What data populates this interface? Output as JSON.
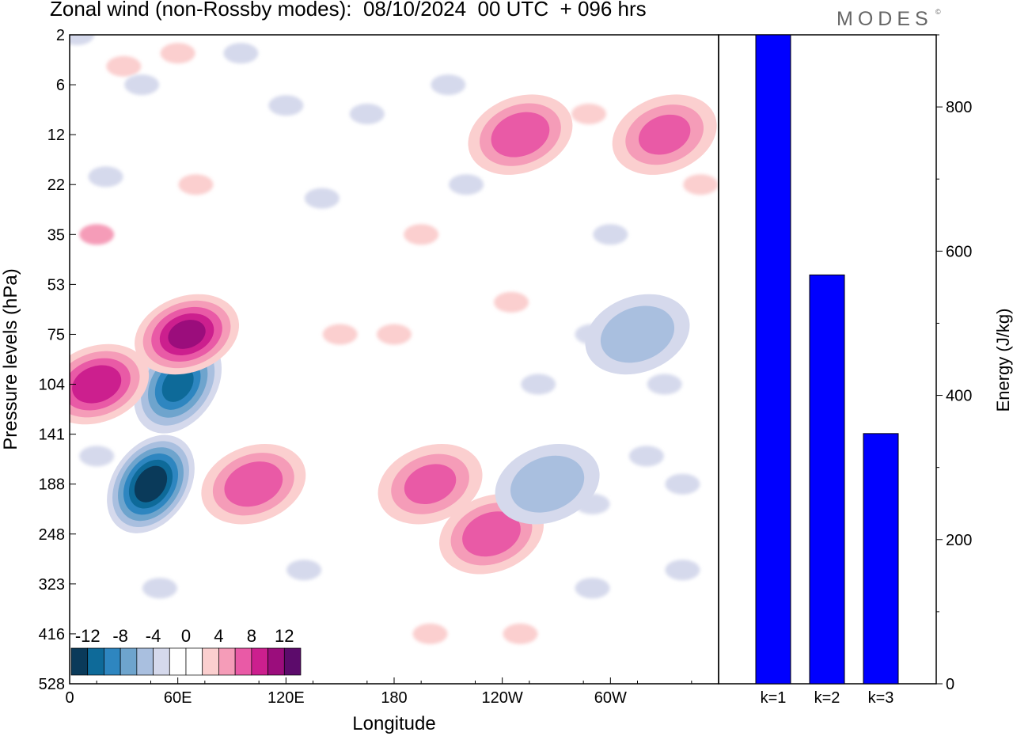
{
  "title": "Zonal wind (non-Rossby modes):  08/10/2024  00 UTC  + 096 hrs",
  "brand": "MODES",
  "brand_mark": "©",
  "chart_data": [
    {
      "type": "heatmap",
      "title": "Zonal wind (non-Rossby modes):  08/10/2024  00 UTC  + 096 hrs",
      "xlabel": "Longitude",
      "ylabel": "Pressure levels (hPa)",
      "x_ticks": [
        "0",
        "60E",
        "120E",
        "180",
        "120W",
        "60W"
      ],
      "y_ticks": [
        "2",
        "6",
        "12",
        "22",
        "35",
        "53",
        "75",
        "104",
        "141",
        "188",
        "248",
        "323",
        "416",
        "528"
      ],
      "colorbar": {
        "labels": [
          "-12",
          "-8",
          "-4",
          "0",
          "4",
          "8",
          "12"
        ],
        "colors": [
          "#0a3a5a",
          "#0e6a99",
          "#2e86c0",
          "#6ea4cd",
          "#a9bfdf",
          "#d5d9ec",
          "#ffffff",
          "#ffffff",
          "#fbcfcf",
          "#f59cb8",
          "#e95aa6",
          "#cc1f8e",
          "#9b0d7c",
          "#5c0b6b"
        ]
      },
      "features": [
        {
          "sign": "negative",
          "lon": 45,
          "level": 188,
          "peak": -13
        },
        {
          "sign": "negative",
          "lon": 60,
          "level": 104,
          "peak": -10
        },
        {
          "sign": "positive",
          "lon": 65,
          "level": 75,
          "peak": 10
        },
        {
          "sign": "positive",
          "lon": 15,
          "level": 104,
          "peak": 9
        },
        {
          "sign": "positive",
          "lon": 102,
          "level": 188,
          "peak": 7
        },
        {
          "sign": "positive",
          "lon": 200,
          "level": 188,
          "peak": 6
        },
        {
          "sign": "positive",
          "lon": 234,
          "level": 248,
          "peak": 7
        },
        {
          "sign": "positive",
          "lon": 250,
          "level": 12,
          "peak": 7
        },
        {
          "sign": "positive",
          "lon": 330,
          "level": 12,
          "peak": 6
        },
        {
          "sign": "negative",
          "lon": 315,
          "level": 75,
          "peak": -5
        },
        {
          "sign": "negative",
          "lon": 265,
          "level": 188,
          "peak": -5
        }
      ]
    },
    {
      "type": "bar",
      "categories": [
        "k=1",
        "k=2",
        "k=3"
      ],
      "values": [
        900,
        567,
        347
      ],
      "ylabel": "Energy (J/kg)",
      "ylim": [
        0,
        900
      ],
      "y_ticks": [
        "0",
        "200",
        "400",
        "600",
        "800"
      ],
      "color": "#0000ff"
    }
  ]
}
